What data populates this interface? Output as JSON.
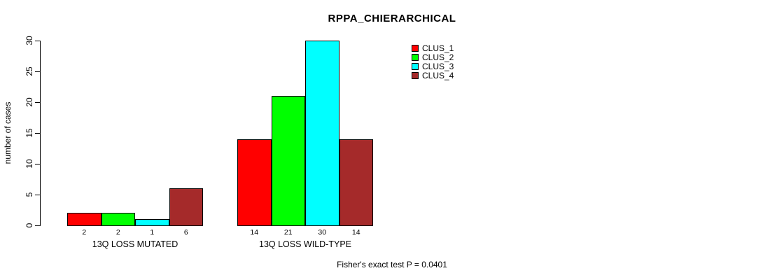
{
  "chart_data": {
    "type": "bar",
    "title": "RPPA_CHIERARCHICAL",
    "xlabel": "",
    "ylabel": "number of cases",
    "categories": [
      "13Q LOSS MUTATED",
      "13Q LOSS WILD-TYPE"
    ],
    "series": [
      {
        "name": "CLUS_1",
        "color": "#FF0000",
        "values": [
          2,
          14
        ]
      },
      {
        "name": "CLUS_2",
        "color": "#00FF00",
        "values": [
          2,
          21
        ]
      },
      {
        "name": "CLUS_3",
        "color": "#00FFFF",
        "values": [
          1,
          30
        ]
      },
      {
        "name": "CLUS_4",
        "color": "#A52A2A",
        "values": [
          6,
          14
        ]
      }
    ],
    "bar_value_labels": [
      [
        "2",
        "2",
        "1",
        "6"
      ],
      [
        "14",
        "21",
        "30",
        "14"
      ]
    ],
    "ylim": [
      0,
      30
    ],
    "yticks": [
      0,
      5,
      10,
      15,
      20,
      25,
      30
    ],
    "grid": false,
    "legend_position": "top-right",
    "annotation": "Fisher's exact test P = 0.0401"
  }
}
